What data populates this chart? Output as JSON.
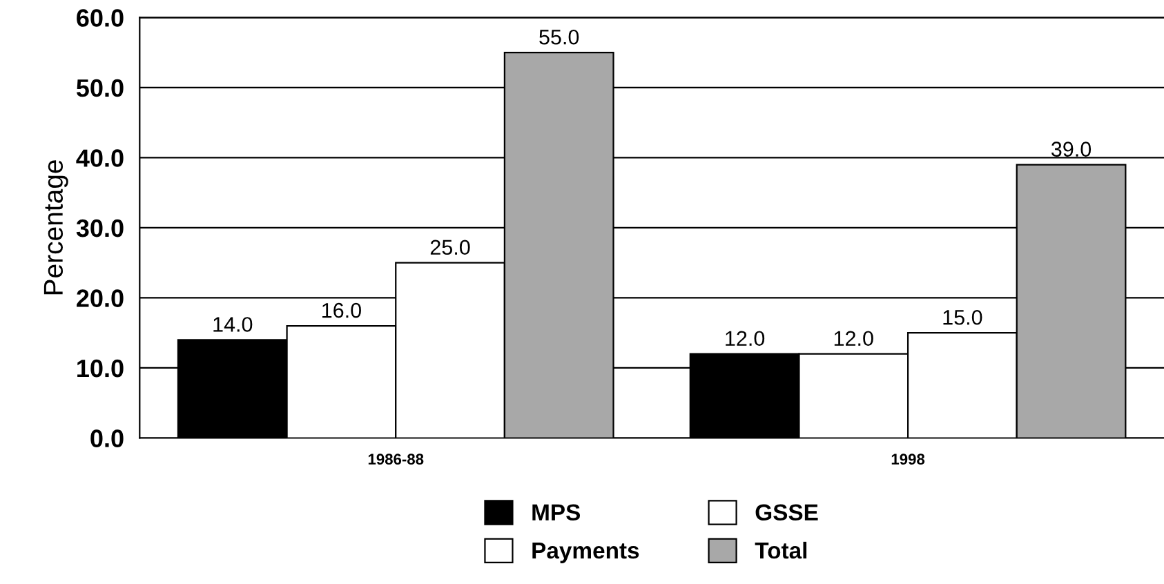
{
  "chart_data": {
    "type": "bar",
    "ylabel": "Percentage",
    "categories": [
      "1986-88",
      "1998"
    ],
    "series": [
      {
        "name": "MPS",
        "color": "#000000",
        "values": [
          14,
          12
        ],
        "value_labels": [
          "14.0",
          "12.0"
        ]
      },
      {
        "name": "Payments",
        "color": "#ffffff",
        "values": [
          16,
          12
        ],
        "value_labels": [
          "16.0",
          "12.0"
        ]
      },
      {
        "name": "GSSE",
        "color": "#ffffff",
        "values": [
          25,
          15
        ],
        "value_labels": [
          "25.0",
          "15.0"
        ]
      },
      {
        "name": "Total",
        "color": "#a8a8a8",
        "values": [
          55,
          39
        ],
        "value_labels": [
          "55.0",
          "39.0"
        ]
      }
    ],
    "ylim": [
      0,
      60
    ],
    "yticks": [
      {
        "value": 0,
        "label": "0.0"
      },
      {
        "value": 10,
        "label": "10.0"
      },
      {
        "value": 20,
        "label": "20.0"
      },
      {
        "value": 30,
        "label": "30.0"
      },
      {
        "value": 40,
        "label": "40.0"
      },
      {
        "value": 50,
        "label": "50.0"
      },
      {
        "value": 60,
        "label": "60.0"
      }
    ],
    "grid": "y",
    "legend": "bottom"
  }
}
